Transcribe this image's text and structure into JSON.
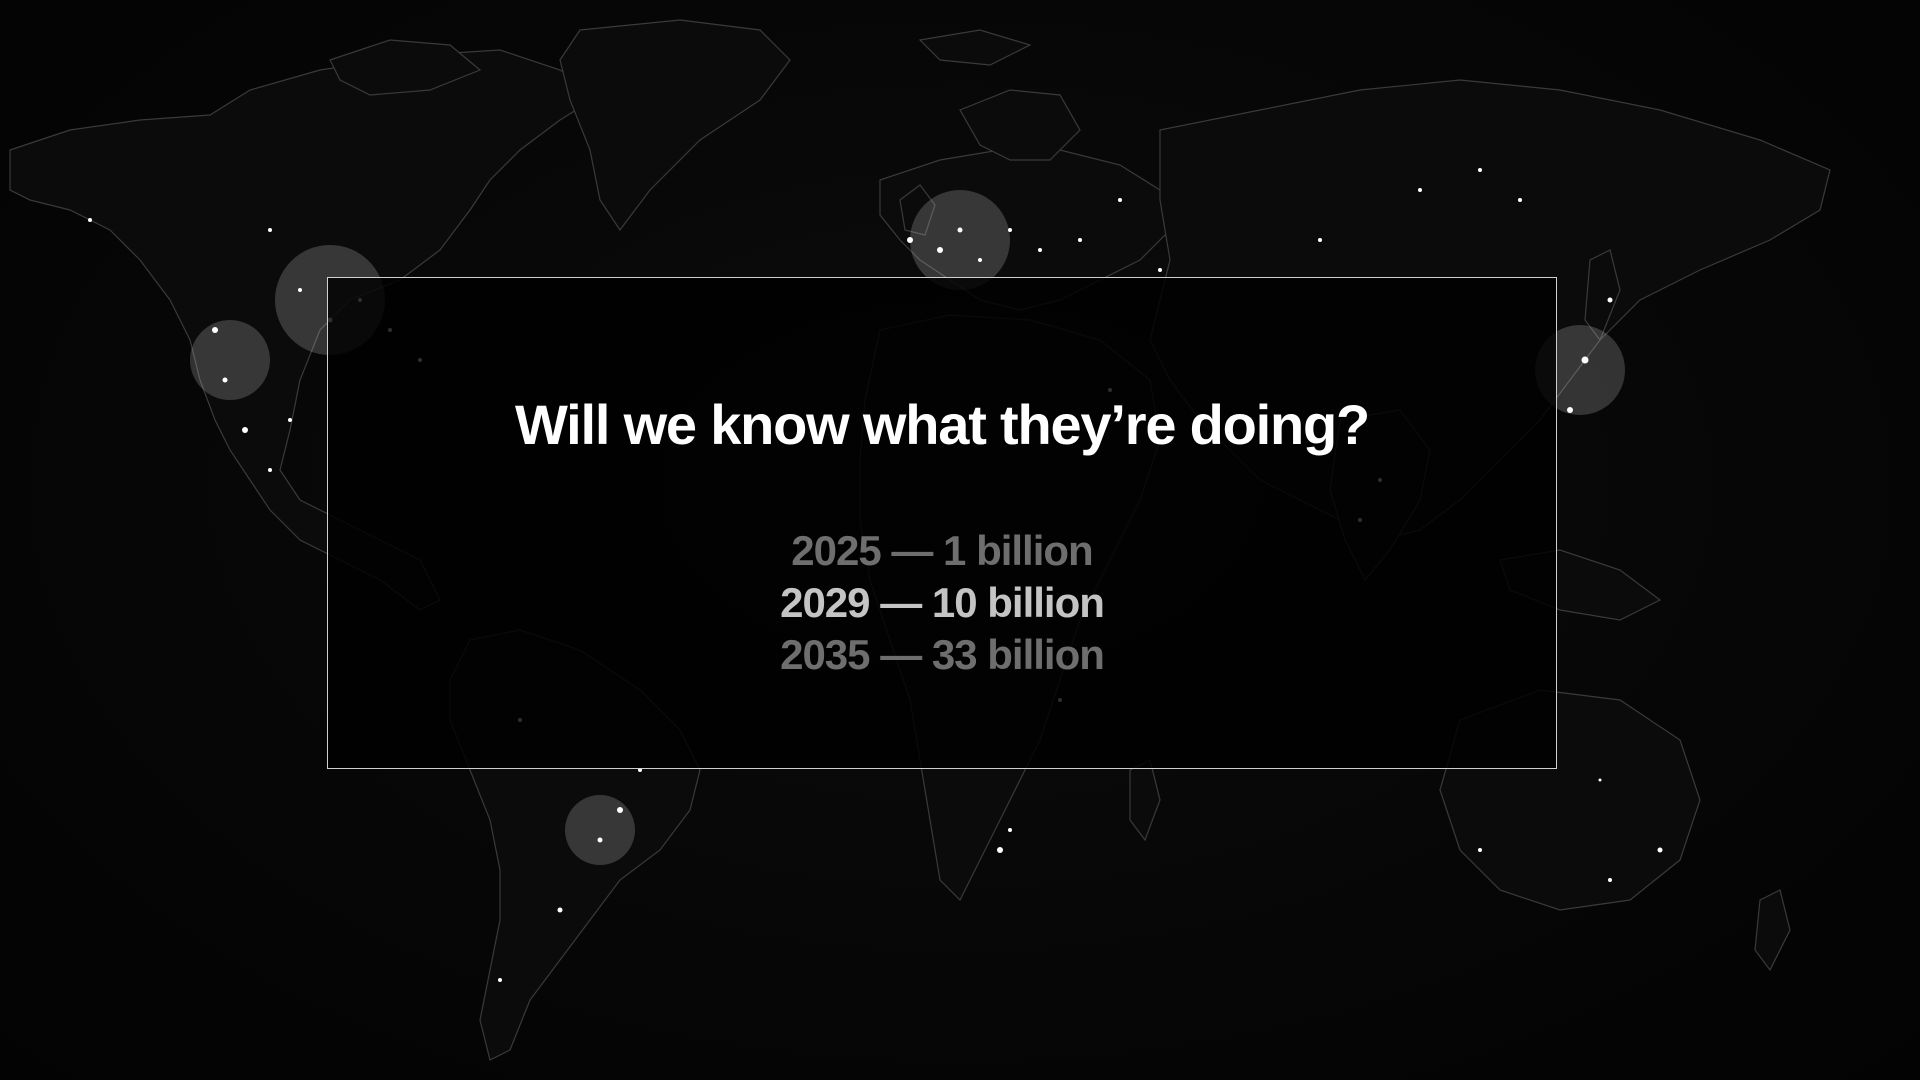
{
  "slide": {
    "title": "Will we know what they’re doing?",
    "stats": [
      {
        "label": "2025 — 1 billion",
        "emphasis": "dim"
      },
      {
        "label": "2029 — 10 billion",
        "emphasis": "mid"
      },
      {
        "label": "2035 — 33 billion",
        "emphasis": "dim"
      }
    ]
  },
  "colors": {
    "background": "#050505",
    "panel_border": "#cfcfcf",
    "title": "#ffffff",
    "stat_dim": "#6e6e6e",
    "stat_highlight": "#c4c4c4"
  },
  "background_image": {
    "icon": "world-map-night-lights"
  }
}
